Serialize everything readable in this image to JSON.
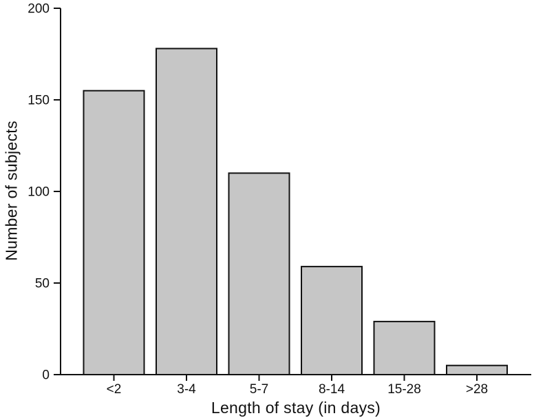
{
  "chart_data": {
    "type": "bar",
    "title": "",
    "categories": [
      "<2",
      "3-4",
      "5-7",
      "8-14",
      "15-28",
      ">28"
    ],
    "values": [
      155,
      178,
      110,
      59,
      29,
      5
    ],
    "xlabel": "Length of stay (in days)",
    "ylabel": "Number of subjects",
    "ylim": [
      0,
      200
    ],
    "yticks": [
      0,
      50,
      100,
      150,
      200
    ],
    "grid": false,
    "legend_position": "none",
    "colors": {
      "bar_fill": "#c6c6c6",
      "bar_stroke": "#111111",
      "axis": "#111111",
      "text": "#111111",
      "background": "#ffffff"
    }
  }
}
